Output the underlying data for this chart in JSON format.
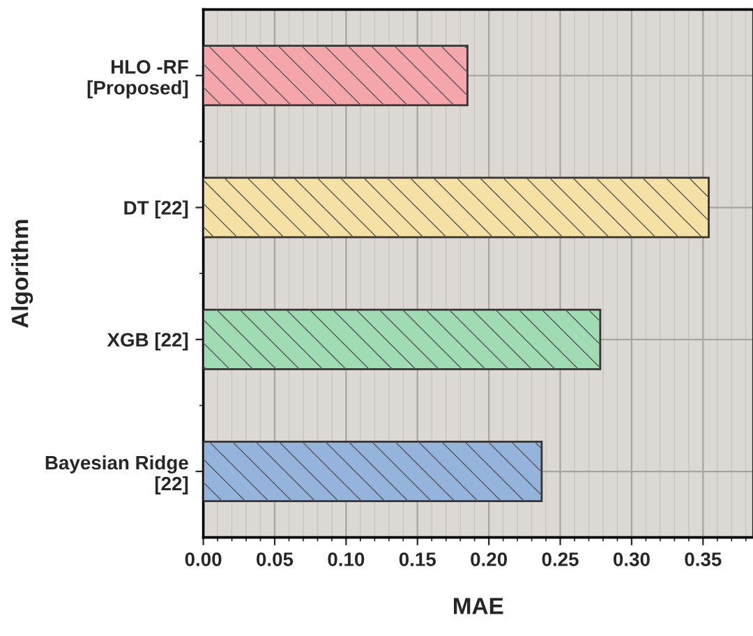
{
  "chart_data": {
    "type": "bar",
    "orientation": "horizontal",
    "xlabel": "MAE",
    "ylabel": "Algorithm",
    "categories": [
      "HLO -RF\n[Proposed]",
      "DT [22]",
      "XGB [22]",
      "Bayesian Ridge\n[22]"
    ],
    "values": [
      0.185,
      0.354,
      0.278,
      0.237
    ],
    "colors": [
      "#f5a6ab",
      "#f6e1a4",
      "#9fdcb4",
      "#94b4dc"
    ],
    "xlim": [
      0,
      0.385
    ],
    "xticks": [
      {
        "value": 0,
        "label": "0.00"
      },
      {
        "value": 0.05,
        "label": "0.05"
      },
      {
        "value": 0.1,
        "label": "0.10"
      },
      {
        "value": 0.15,
        "label": "0.15"
      },
      {
        "value": 0.2,
        "label": "0.20"
      },
      {
        "value": 0.25,
        "label": "0.25"
      },
      {
        "value": 0.3,
        "label": "0.30"
      },
      {
        "value": 0.35,
        "label": "0.35"
      }
    ],
    "grid": true,
    "legend": false
  }
}
